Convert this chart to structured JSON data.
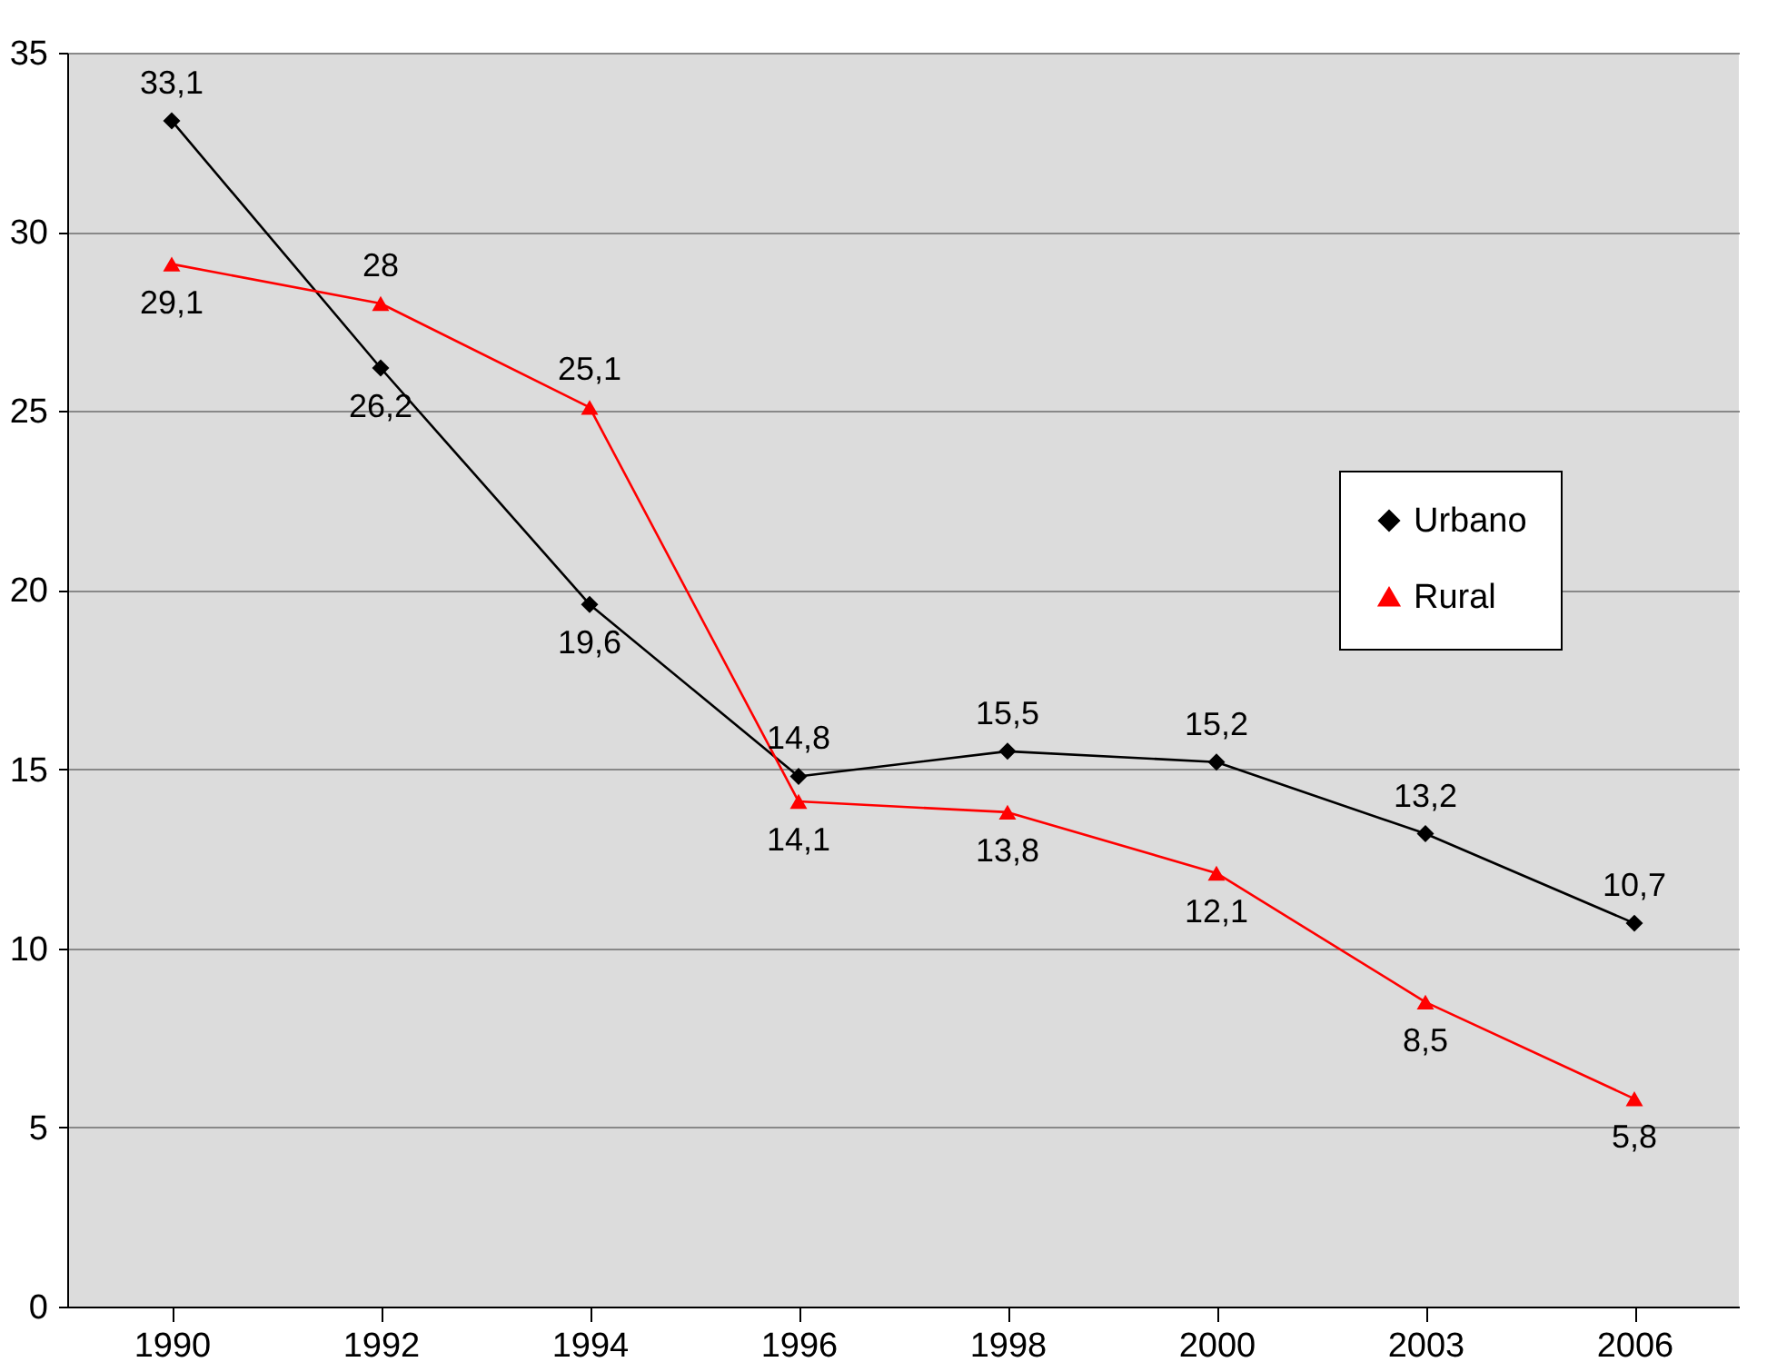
{
  "chart_data": {
    "type": "line",
    "categories": [
      "1990",
      "1992",
      "1994",
      "1996",
      "1998",
      "2000",
      "2003",
      "2006"
    ],
    "series": [
      {
        "name": "Urbano",
        "color": "#000000",
        "marker": "diamond",
        "values": [
          33.1,
          26.2,
          19.6,
          14.8,
          15.5,
          15.2,
          13.2,
          10.7
        ],
        "value_labels": [
          "33,1",
          "26,2",
          "19,6",
          "14,8",
          "15,5",
          "15,2",
          "13,2",
          "10,7"
        ]
      },
      {
        "name": "Rural",
        "color": "#ff0000",
        "marker": "triangle",
        "values": [
          29.1,
          28,
          25.1,
          14.1,
          13.8,
          12.1,
          8.5,
          5.8
        ],
        "value_labels": [
          "29,1",
          "28",
          "25,1",
          "14,1",
          "13,8",
          "12,1",
          "8,5",
          "5,8"
        ]
      }
    ],
    "ylim": [
      0,
      35
    ],
    "yticks": [
      0,
      5,
      10,
      15,
      20,
      25,
      30,
      35
    ],
    "grid": "y",
    "legend": "right",
    "line_style": "solid"
  }
}
